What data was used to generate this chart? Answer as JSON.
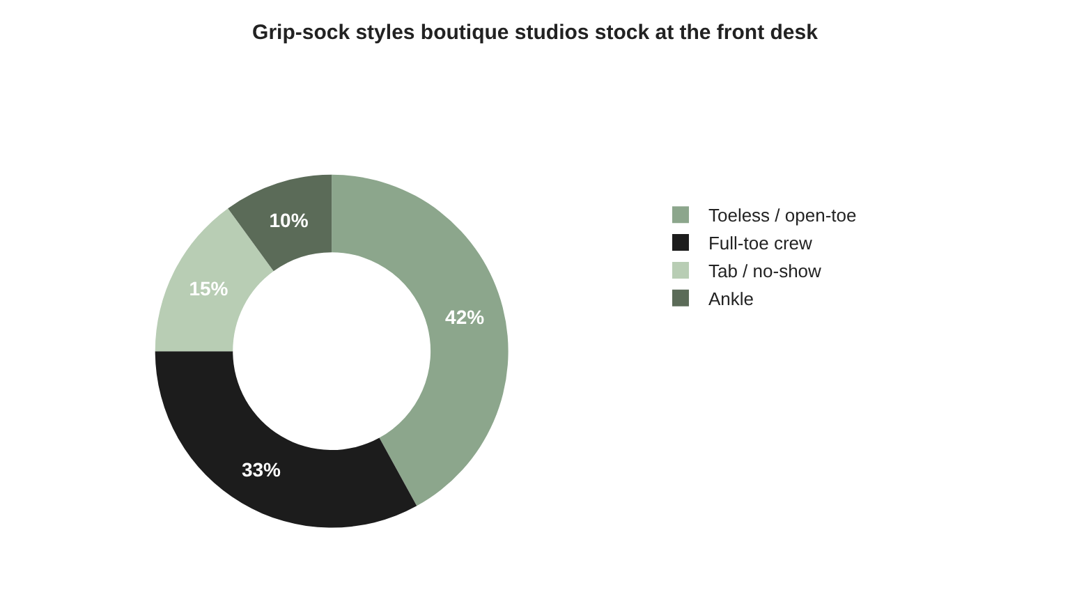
{
  "chart_data": {
    "type": "donut",
    "title": "Grip-sock styles boutique studios stock at the front desk",
    "categories": [
      "Toeless / open-toe",
      "Full-toe crew",
      "Tab / no-show",
      "Ankle"
    ],
    "values": [
      42,
      33,
      15,
      10
    ],
    "colors": [
      "#8ca68c",
      "#1c1c1c",
      "#b8cdb4",
      "#5b6b58"
    ],
    "value_labels": [
      "42%",
      "33%",
      "15%",
      "10%"
    ],
    "legend": "right"
  }
}
